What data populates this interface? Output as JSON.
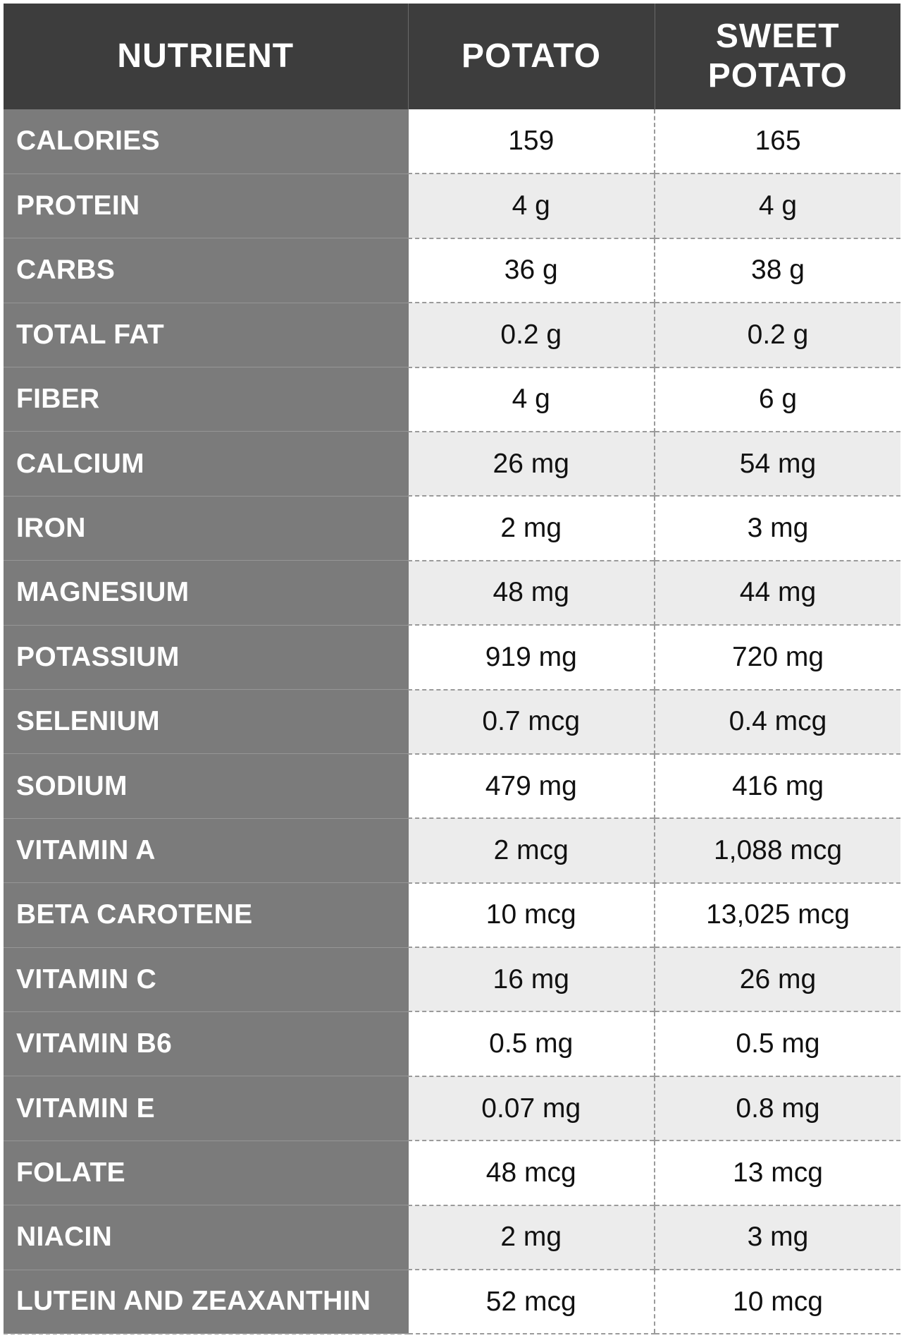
{
  "headers": [
    "NUTRIENT",
    "POTATO",
    "SWEET\nPOTATO"
  ],
  "rows": [
    {
      "nutrient": "CALORIES",
      "potato": "159",
      "sweet_potato": "165"
    },
    {
      "nutrient": "PROTEIN",
      "potato": "4 g",
      "sweet_potato": "4 g"
    },
    {
      "nutrient": "CARBS",
      "potato": "36 g",
      "sweet_potato": "38 g"
    },
    {
      "nutrient": "TOTAL FAT",
      "potato": "0.2 g",
      "sweet_potato": "0.2 g"
    },
    {
      "nutrient": "FIBER",
      "potato": "4 g",
      "sweet_potato": "6 g"
    },
    {
      "nutrient": "CALCIUM",
      "potato": "26 mg",
      "sweet_potato": "54 mg"
    },
    {
      "nutrient": "IRON",
      "potato": "2 mg",
      "sweet_potato": "3 mg"
    },
    {
      "nutrient": "MAGNESIUM",
      "potato": "48 mg",
      "sweet_potato": "44 mg"
    },
    {
      "nutrient": "POTASSIUM",
      "potato": "919 mg",
      "sweet_potato": "720 mg"
    },
    {
      "nutrient": "SELENIUM",
      "potato": "0.7 mcg",
      "sweet_potato": "0.4 mcg"
    },
    {
      "nutrient": "SODIUM",
      "potato": "479 mg",
      "sweet_potato": "416 mg"
    },
    {
      "nutrient": "VITAMIN A",
      "potato": "2 mcg",
      "sweet_potato": "1,088 mcg"
    },
    {
      "nutrient": "BETA CAROTENE",
      "potato": "10 mcg",
      "sweet_potato": "13,025 mcg"
    },
    {
      "nutrient": "VITAMIN C",
      "potato": "16 mg",
      "sweet_potato": "26 mg"
    },
    {
      "nutrient": "VITAMIN B6",
      "potato": "0.5 mg",
      "sweet_potato": "0.5 mg"
    },
    {
      "nutrient": "VITAMIN E",
      "potato": "0.07 mg",
      "sweet_potato": "0.8 mg"
    },
    {
      "nutrient": "FOLATE",
      "potato": "48 mcg",
      "sweet_potato": "13 mcg"
    },
    {
      "nutrient": "NIACIN",
      "potato": "2 mg",
      "sweet_potato": "3 mg"
    },
    {
      "nutrient": "LUTEIN AND ZEAXANTHIN",
      "potato": "52 mcg",
      "sweet_potato": "10 mcg"
    }
  ],
  "colors": {
    "header_bg": "#3d3d3d",
    "nutrient_col_bg": "#7b7b7b",
    "stripe_bg": "#ececec",
    "text_light": "#ffffff",
    "text_dark": "#111111"
  }
}
